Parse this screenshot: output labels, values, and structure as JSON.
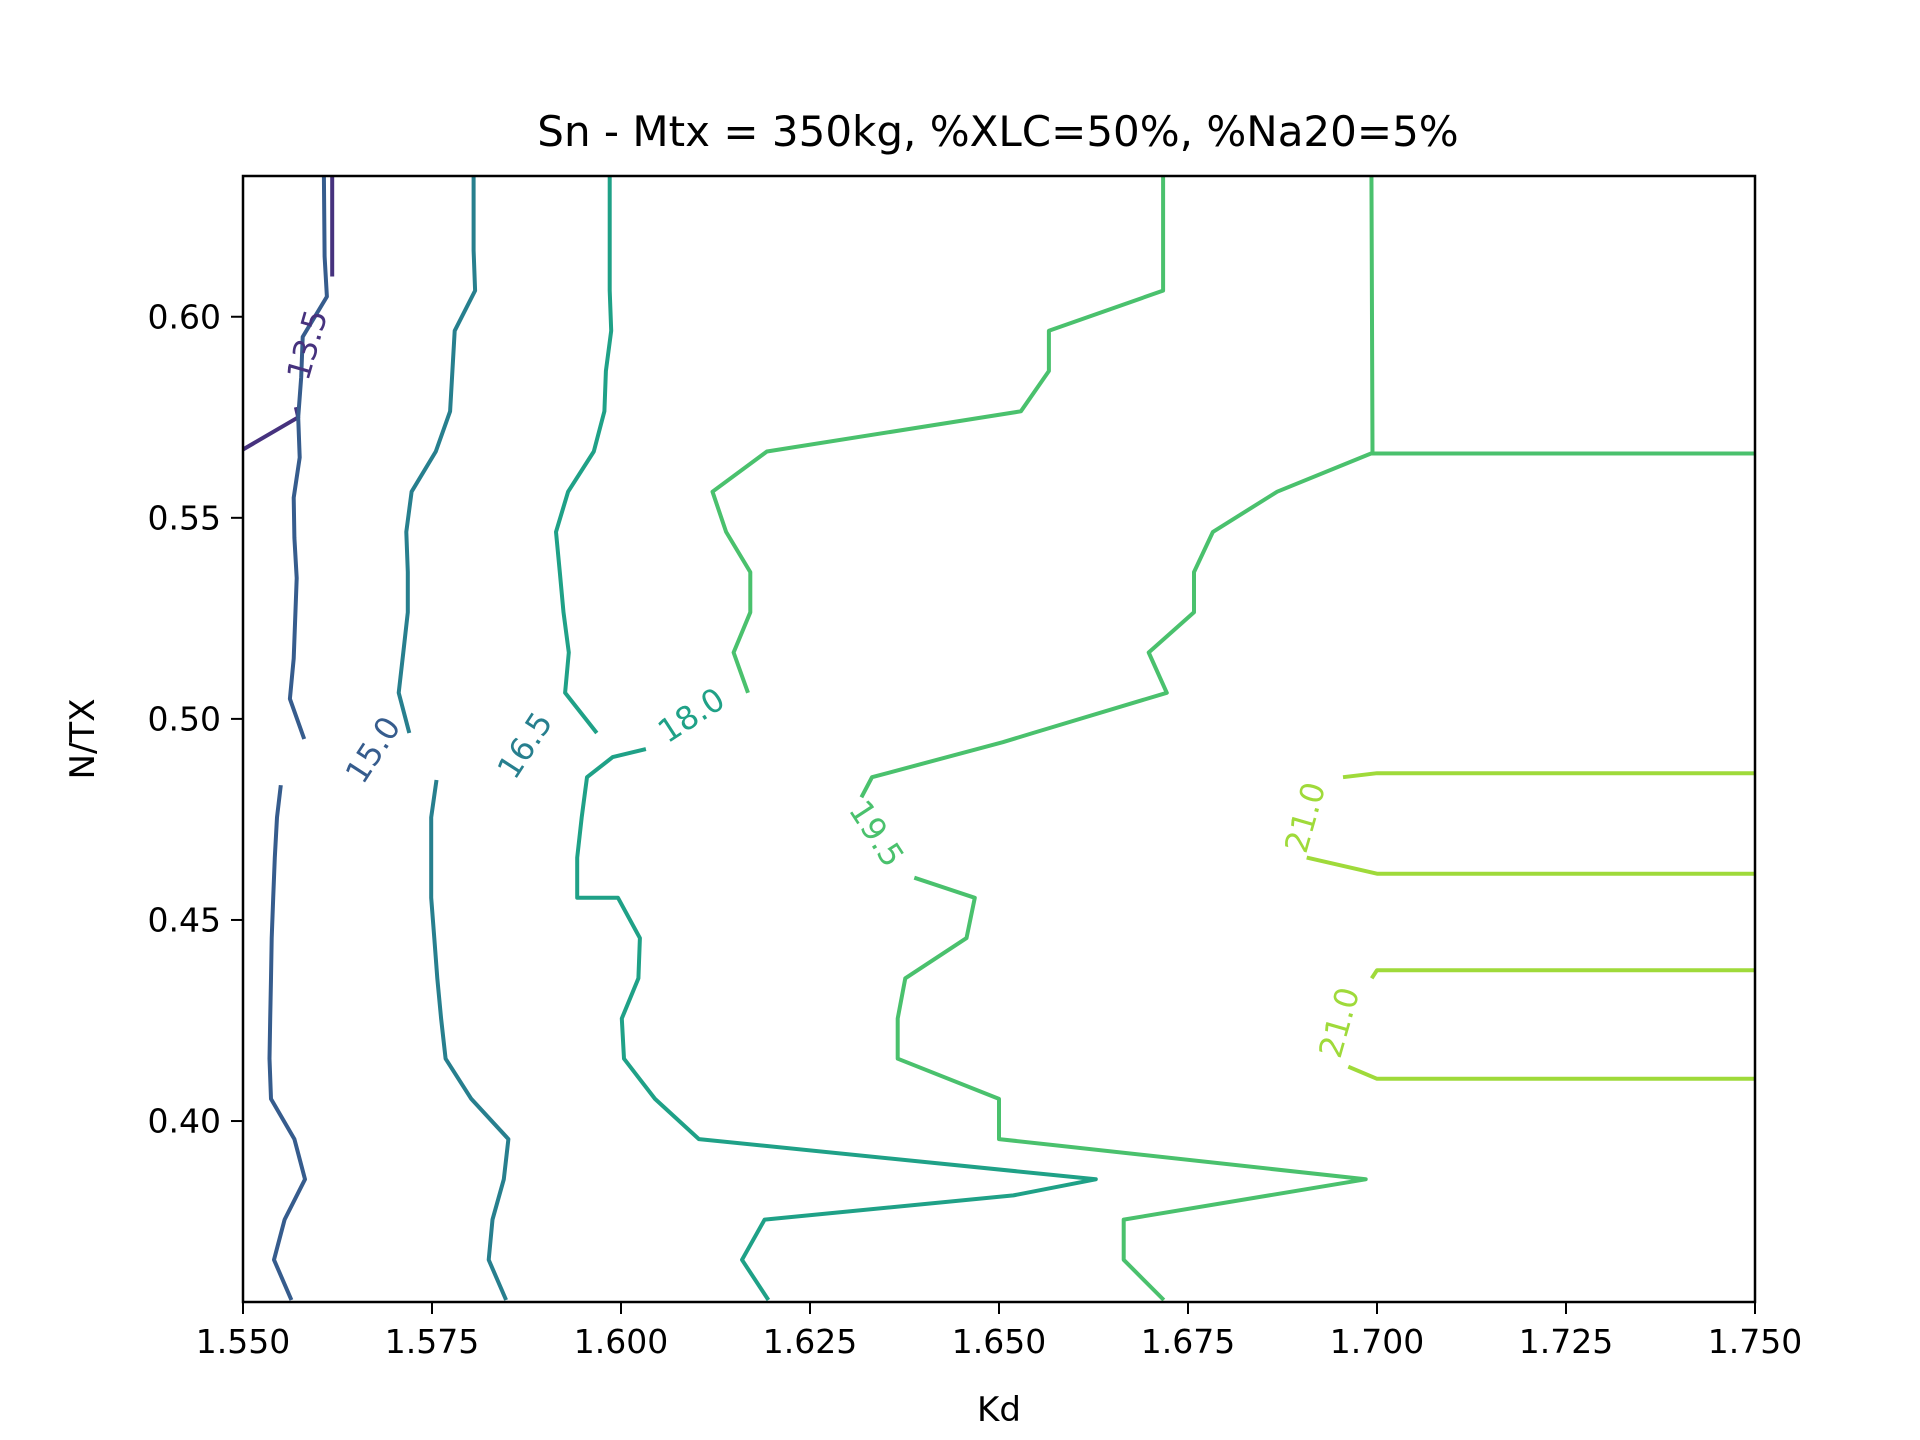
{
  "chart_data": {
    "type": "contour",
    "title": "Sn - Mtx = 350kg, %XLC=50%, %Na20=5%",
    "xlabel": "Kd",
    "ylabel": "N/TX",
    "xlim": [
      1.55,
      1.75
    ],
    "ylim": [
      0.355,
      0.635
    ],
    "xticks": [
      1.55,
      1.575,
      1.6,
      1.625,
      1.65,
      1.675,
      1.7,
      1.725,
      1.75
    ],
    "xtick_labels": [
      "1.550",
      "1.575",
      "1.600",
      "1.625",
      "1.650",
      "1.675",
      "1.700",
      "1.725",
      "1.750"
    ],
    "yticks": [
      0.4,
      0.45,
      0.5,
      0.55,
      0.6
    ],
    "ytick_labels": [
      "0.40",
      "0.45",
      "0.50",
      "0.55",
      "0.60"
    ],
    "grid": false,
    "levels": [
      {
        "level": "13.5",
        "color": "#46327e",
        "lines": [
          [
            [
              1.5618,
              0.635
            ],
            [
              1.5618,
              0.61
            ]
          ],
          [
            [
              1.557,
              0.5775
            ],
            [
              1.5573,
              0.575
            ],
            [
              1.55,
              0.567
            ]
          ]
        ],
        "label": {
          "text": "13.5",
          "x": 1.5585,
          "y": 0.593,
          "angle": -74
        }
      },
      {
        "level": "15.0",
        "color": "#365c8d",
        "lines": [
          [
            [
              1.5607,
              0.635
            ],
            [
              1.5608,
              0.615
            ],
            [
              1.5611,
              0.605
            ],
            [
              1.5579,
              0.595
            ],
            [
              1.5577,
              0.585
            ],
            [
              1.5573,
              0.575
            ],
            [
              1.5575,
              0.565
            ],
            [
              1.5567,
              0.555
            ],
            [
              1.5568,
              0.545
            ],
            [
              1.5571,
              0.535
            ],
            [
              1.5569,
              0.525
            ],
            [
              1.5567,
              0.515
            ],
            [
              1.5562,
              0.505
            ],
            [
              1.5581,
              0.495
            ]
          ],
          [
            [
              1.555,
              0.4835
            ],
            [
              1.5545,
              0.4755
            ],
            [
              1.5542,
              0.4655
            ],
            [
              1.554,
              0.4555
            ],
            [
              1.5538,
              0.4455
            ],
            [
              1.5537,
              0.4355
            ],
            [
              1.5536,
              0.4255
            ],
            [
              1.5535,
              0.4155
            ],
            [
              1.5537,
              0.4055
            ],
            [
              1.5568,
              0.3955
            ],
            [
              1.5582,
              0.3855
            ],
            [
              1.5555,
              0.3755
            ],
            [
              1.5541,
              0.3655
            ],
            [
              1.5564,
              0.3555
            ]
          ]
        ],
        "label": {
          "text": "15.0",
          "x": 1.5672,
          "y": 0.4923,
          "angle": -57
        }
      },
      {
        "level": "16.5",
        "color": "#277f8e",
        "lines": [
          [
            [
              1.5805,
              0.635
            ],
            [
              1.5805,
              0.6165
            ],
            [
              1.5807,
              0.6065
            ],
            [
              1.578,
              0.5965
            ],
            [
              1.5777,
              0.5865
            ],
            [
              1.5774,
              0.5765
            ],
            [
              1.5755,
              0.5665
            ],
            [
              1.5723,
              0.5565
            ],
            [
              1.5716,
              0.5465
            ],
            [
              1.5718,
              0.5365
            ],
            [
              1.5718,
              0.5265
            ],
            [
              1.5712,
              0.5165
            ],
            [
              1.5706,
              0.5065
            ],
            [
              1.572,
              0.4965
            ]
          ],
          [
            [
              1.5756,
              0.4848
            ],
            [
              1.5749,
              0.4755
            ],
            [
              1.5749,
              0.4655
            ],
            [
              1.5749,
              0.4555
            ],
            [
              1.5753,
              0.4455
            ],
            [
              1.5757,
              0.4355
            ],
            [
              1.5762,
              0.4255
            ],
            [
              1.5768,
              0.4155
            ],
            [
              1.5802,
              0.4055
            ],
            [
              1.5851,
              0.3955
            ],
            [
              1.5845,
              0.3855
            ],
            [
              1.583,
              0.3755
            ],
            [
              1.5825,
              0.3655
            ],
            [
              1.5848,
              0.3555
            ]
          ]
        ],
        "label": {
          "text": "16.5",
          "x": 1.5873,
          "y": 0.4934,
          "angle": -57
        }
      },
      {
        "level": "18.0",
        "color": "#1fa187",
        "lines": [
          [
            [
              1.5985,
              0.635
            ],
            [
              1.5985,
              0.6065
            ],
            [
              1.5987,
              0.5965
            ],
            [
              1.598,
              0.5865
            ],
            [
              1.5978,
              0.5765
            ],
            [
              1.5964,
              0.5665
            ],
            [
              1.593,
              0.5565
            ],
            [
              1.5914,
              0.5465
            ],
            [
              1.5919,
              0.5365
            ],
            [
              1.5924,
              0.5265
            ],
            [
              1.5931,
              0.5165
            ],
            [
              1.5926,
              0.5065
            ],
            [
              1.5968,
              0.4965
            ]
          ],
          [
            [
              1.6033,
              0.4925
            ],
            [
              1.5989,
              0.4905
            ],
            [
              1.5955,
              0.4855
            ],
            [
              1.5948,
              0.4755
            ],
            [
              1.5942,
              0.4655
            ],
            [
              1.5942,
              0.4555
            ],
            [
              1.5996,
              0.4555
            ],
            [
              1.6025,
              0.4455
            ],
            [
              1.6023,
              0.4355
            ],
            [
              1.6001,
              0.4255
            ],
            [
              1.6004,
              0.4155
            ],
            [
              1.6045,
              0.4055
            ],
            [
              1.6103,
              0.3955
            ],
            [
              1.6628,
              0.3855
            ],
            [
              1.6519,
              0.3815
            ],
            [
              1.619,
              0.3755
            ],
            [
              1.616,
              0.3655
            ],
            [
              1.6195,
              0.3555
            ]
          ]
        ],
        "label": {
          "text": "18.0",
          "x": 1.6093,
          "y": 0.5009,
          "angle": -33
        }
      },
      {
        "level": "19.5",
        "color": "#4ac16d",
        "lines": [
          [
            [
              1.6717,
              0.635
            ],
            [
              1.6717,
              0.6065
            ],
            [
              1.6566,
              0.5965
            ],
            [
              1.6566,
              0.5865
            ],
            [
              1.6529,
              0.5765
            ],
            [
              1.6193,
              0.5665
            ],
            [
              1.6121,
              0.5565
            ],
            [
              1.6139,
              0.5465
            ],
            [
              1.6171,
              0.5365
            ],
            [
              1.6171,
              0.5265
            ],
            [
              1.6149,
              0.5165
            ],
            [
              1.6168,
              0.5065
            ]
          ],
          [
            [
              1.6992,
              0.6645
            ],
            [
              1.6994,
              0.566
            ],
            [
              1.75,
              0.566
            ]
          ],
          [
            [
              1.75,
              0.566
            ],
            [
              1.6992,
              0.566
            ],
            [
              1.6868,
              0.5565
            ],
            [
              1.6783,
              0.5465
            ],
            [
              1.6758,
              0.5365
            ],
            [
              1.6758,
              0.5265
            ],
            [
              1.6698,
              0.5165
            ],
            [
              1.6722,
              0.5065
            ],
            [
              1.6545,
              0.4965
            ],
            [
              1.6505,
              0.4942
            ],
            [
              1.6332,
              0.4855
            ],
            [
              1.6318,
              0.4805
            ]
          ],
          [
            [
              1.6388,
              0.4605
            ],
            [
              1.6468,
              0.4555
            ],
            [
              1.6457,
              0.4455
            ],
            [
              1.6376,
              0.4355
            ],
            [
              1.6366,
              0.4255
            ],
            [
              1.6366,
              0.4155
            ],
            [
              1.65,
              0.4055
            ],
            [
              1.65,
              0.3955
            ],
            [
              1.6985,
              0.3855
            ],
            [
              1.6665,
              0.3755
            ],
            [
              1.6665,
              0.3655
            ],
            [
              1.6718,
              0.3555
            ]
          ]
        ],
        "label": {
          "text": "19.5",
          "x": 1.6338,
          "y": 0.4715,
          "angle": 57
        }
      },
      {
        "level": "21.0",
        "color": "#9fda3a",
        "lines": [
          [
            [
              1.6955,
              0.4855
            ],
            [
              1.7,
              0.4865
            ],
            [
              1.75,
              0.4865
            ]
          ],
          [
            [
              1.6907,
              0.4655
            ],
            [
              1.7,
              0.4615
            ],
            [
              1.75,
              0.4615
            ]
          ],
          [
            [
              1.6993,
              0.4355
            ],
            [
              1.7,
              0.4375
            ],
            [
              1.75,
              0.4375
            ]
          ],
          [
            [
              1.6962,
              0.4135
            ],
            [
              1.7,
              0.4105
            ],
            [
              1.75,
              0.4105
            ]
          ]
        ],
        "labels": [
          {
            "text": "21.0",
            "x": 1.6905,
            "y": 0.4755,
            "angle": -74
          },
          {
            "text": "21.0",
            "x": 1.695,
            "y": 0.4245,
            "angle": -74
          }
        ]
      }
    ]
  }
}
